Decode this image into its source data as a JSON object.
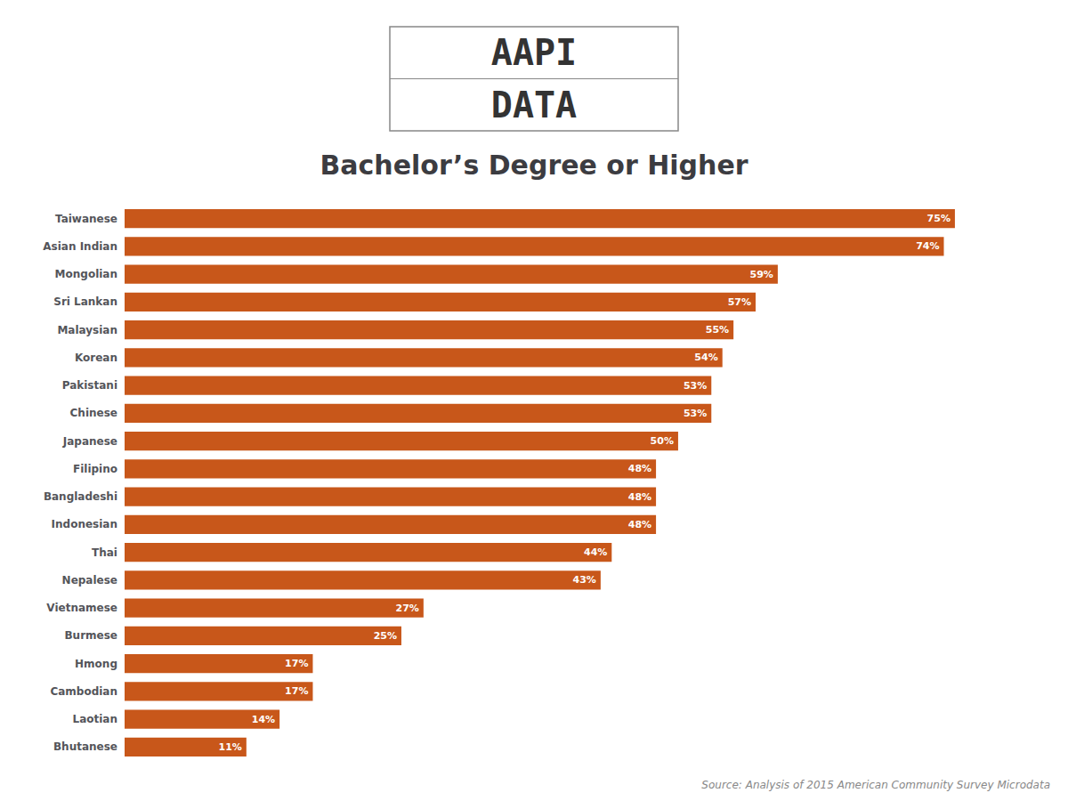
{
  "chart_data": {
    "type": "bar",
    "orientation": "horizontal",
    "title": "Bachelor’s Degree or Higher",
    "categories": [
      "Taiwanese",
      "Asian Indian",
      "Mongolian",
      "Sri Lankan",
      "Malaysian",
      "Korean",
      "Pakistani",
      "Chinese",
      "Japanese",
      "Filipino",
      "Bangladeshi",
      "Indonesian",
      "Thai",
      "Nepalese",
      "Vietnamese",
      "Burmese",
      "Hmong",
      "Cambodian",
      "Laotian",
      "Bhutanese"
    ],
    "values": [
      75,
      74,
      59,
      57,
      55,
      54,
      53,
      53,
      50,
      48,
      48,
      48,
      44,
      43,
      27,
      25,
      17,
      17,
      14,
      11
    ],
    "value_labels": [
      "75%",
      "74%",
      "59%",
      "57%",
      "55%",
      "54%",
      "53%",
      "53%",
      "50%",
      "48%",
      "48%",
      "48%",
      "44%",
      "43%",
      "27%",
      "25%",
      "17%",
      "17%",
      "14%",
      "11%"
    ],
    "data_labels": true,
    "color": "#c8571a",
    "xlim": [
      0,
      82
    ],
    "grid": false,
    "tick_labels": "y",
    "annotations": [
      "AAPI",
      "DATA",
      "Source: Analysis of 2015 American Community Survey Microdata"
    ]
  }
}
